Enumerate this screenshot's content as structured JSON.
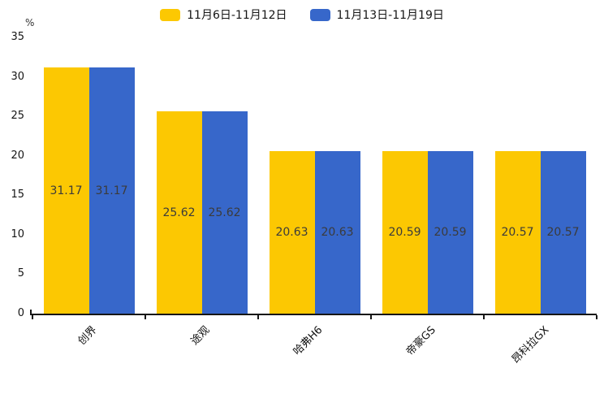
{
  "chart_data": {
    "type": "bar",
    "title": "",
    "ylabel": "%",
    "xlabel": "",
    "ylim": [
      0,
      35
    ],
    "yticks": [
      35,
      30,
      25,
      20,
      15,
      10,
      5,
      0
    ],
    "grid": false,
    "legend_position": "top-center",
    "categories": [
      "创界",
      "途观",
      "哈弗H6",
      "帝豪GS",
      "昂科拉GX"
    ],
    "series": [
      {
        "name": "11月6日-11月12日",
        "color": "#FCC802",
        "values": [
          31.17,
          25.62,
          20.63,
          20.59,
          20.57
        ]
      },
      {
        "name": "11月13日-11月19日",
        "color": "#3767CA",
        "values": [
          31.17,
          25.62,
          20.63,
          20.59,
          20.57
        ]
      }
    ],
    "value_labels": [
      "31.17",
      "25.62",
      "20.63",
      "20.59",
      "20.57"
    ],
    "colors": {
      "axis": "#151515",
      "value_label_text": "#3b3b3b",
      "background": "#ffffff"
    }
  }
}
